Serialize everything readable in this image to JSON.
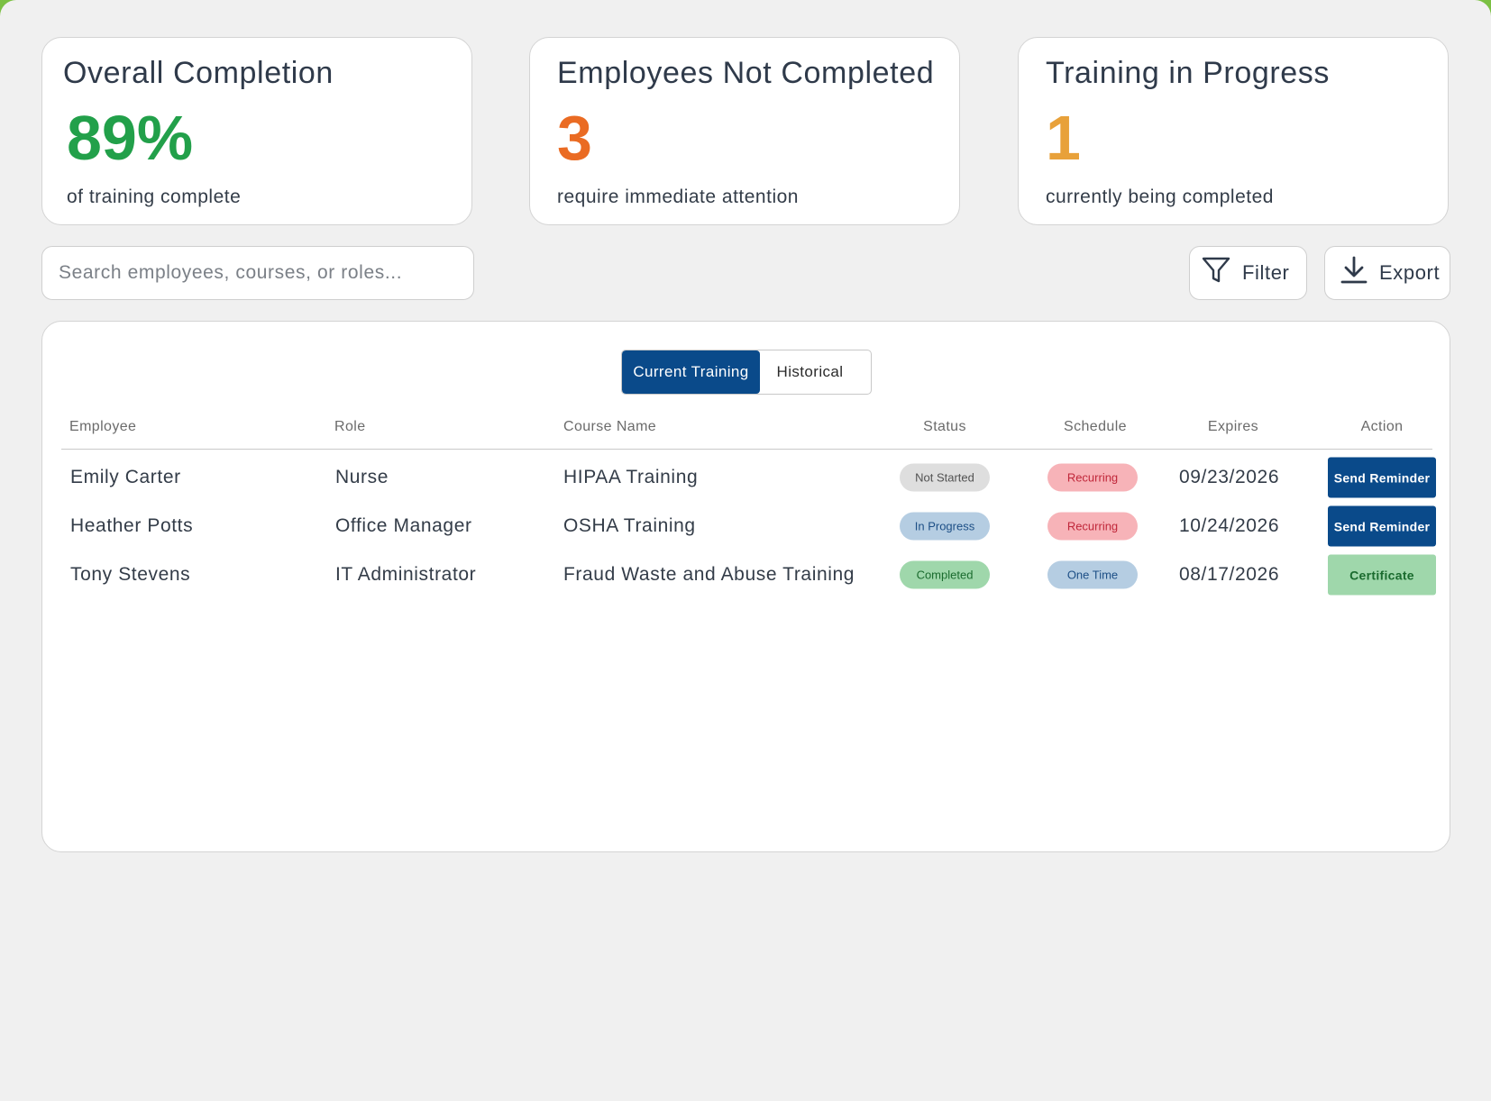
{
  "colors": {
    "accent": "#0a4a8a",
    "completion_green": "#22a04a",
    "not_completed_orange": "#ea6b23",
    "in_progress_amber": "#e8a13a",
    "window_border_green": "#7bc043"
  },
  "stats": {
    "overall": {
      "title": "Overall Completion",
      "value": "89%",
      "subtitle": "of training complete"
    },
    "not_completed": {
      "title": "Employees Not Completed",
      "value": "3",
      "subtitle": "require immediate attention"
    },
    "in_progress": {
      "title": "Training in Progress",
      "value": "1",
      "subtitle": "currently being completed"
    }
  },
  "search": {
    "placeholder": "Search employees, courses, or roles...",
    "value": ""
  },
  "toolbar": {
    "filter_label": "Filter",
    "filter_icon": "funnel-icon",
    "export_label": "Export",
    "export_icon": "download-icon"
  },
  "tabs": {
    "current": "Current Training",
    "historical": "Historical",
    "selected": "current"
  },
  "table": {
    "headers": {
      "employee": "Employee",
      "role": "Role",
      "course": "Course Name",
      "status": "Status",
      "schedule": "Schedule",
      "expires": "Expires",
      "action": "Action"
    },
    "rows": [
      {
        "employee": "Emily Carter",
        "role": "Nurse",
        "course": "HIPAA Training",
        "status": "Not Started",
        "schedule": "Recurring",
        "expires": "09/23/2026",
        "action": "Send Reminder"
      },
      {
        "employee": "Heather Potts",
        "role": "Office Manager",
        "course": "OSHA Training",
        "status": "In Progress",
        "schedule": "Recurring",
        "expires": "10/24/2026",
        "action": "Send Reminder"
      },
      {
        "employee": "Tony Stevens",
        "role": "IT Administrator",
        "course": "Fraud Waste and Abuse Training",
        "status": "Completed",
        "schedule": "One Time",
        "expires": "08/17/2026",
        "action": "Certificate"
      }
    ]
  }
}
